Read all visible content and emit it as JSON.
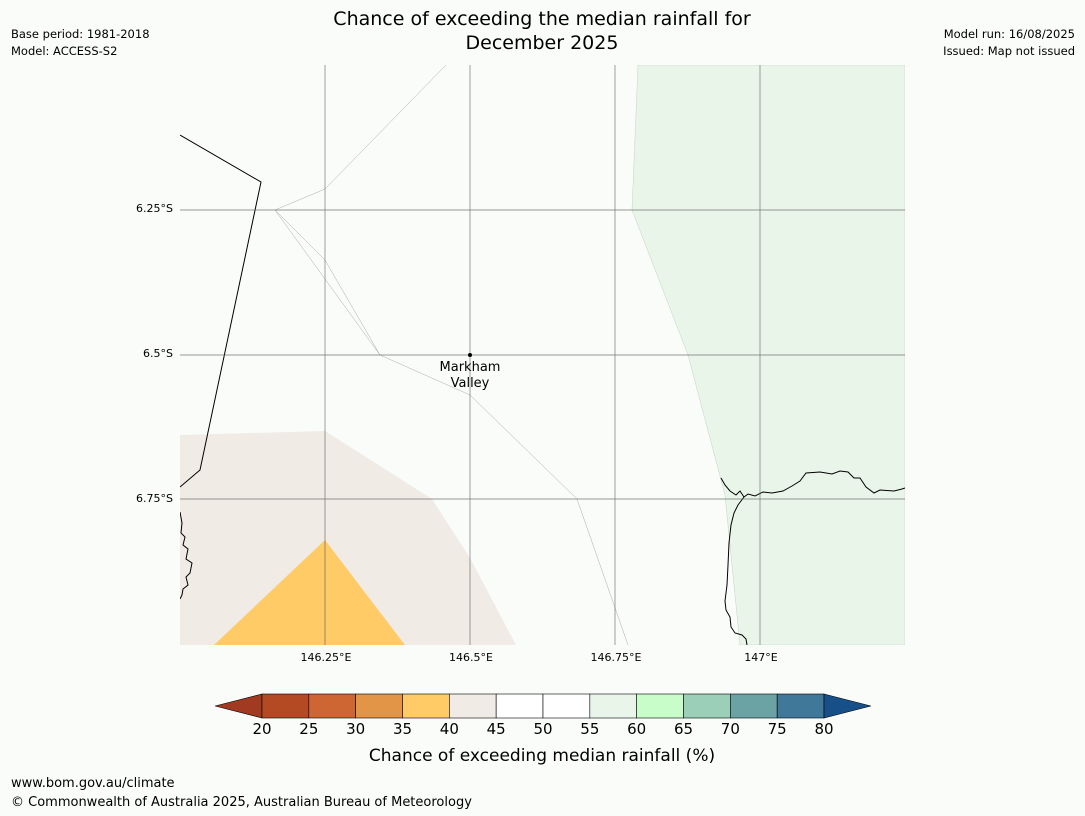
{
  "header": {
    "title_line1": "Chance of exceeding the median rainfall for",
    "title_line2": "December 2025",
    "left_info": [
      "Base period: 1981-2018",
      "Model: ACCESS-S2"
    ],
    "right_info": [
      "Model run: 16/08/2025",
      "Issued: Map not issued"
    ]
  },
  "map": {
    "lat_labels": [
      "6.25°S",
      "6.5°S",
      "6.75°S"
    ],
    "lon_labels": [
      "146.25°E",
      "146.5°E",
      "146.75°E",
      "147°E"
    ],
    "place": {
      "name_line1": "Markham",
      "name_line2": "Valley"
    },
    "fill_colors": {
      "cat_40_45": "#f0ebe5",
      "cat_35_40": "#fecb66",
      "cat_55_60": "#eaf5ea",
      "background": "#fafcfa"
    }
  },
  "legend": {
    "title": "Chance of exceeding median rainfall (%)",
    "ticks": [
      "20",
      "25",
      "30",
      "35",
      "40",
      "45",
      "50",
      "55",
      "60",
      "65",
      "70",
      "75",
      "80"
    ],
    "colors": [
      "#a13a21",
      "#b34a24",
      "#ce6633",
      "#e29447",
      "#fecb66",
      "#f0ebe5",
      "#ffffff",
      "#ffffff",
      "#eaf5ea",
      "#c8fcc8",
      "#9ccfb7",
      "#6ba3a5",
      "#3f7898",
      "#174f88"
    ]
  },
  "footer": {
    "url": "www.bom.gov.au/climate",
    "copyright": "© Commonwealth of Australia 2025, Australian Bureau of Meteorology"
  }
}
